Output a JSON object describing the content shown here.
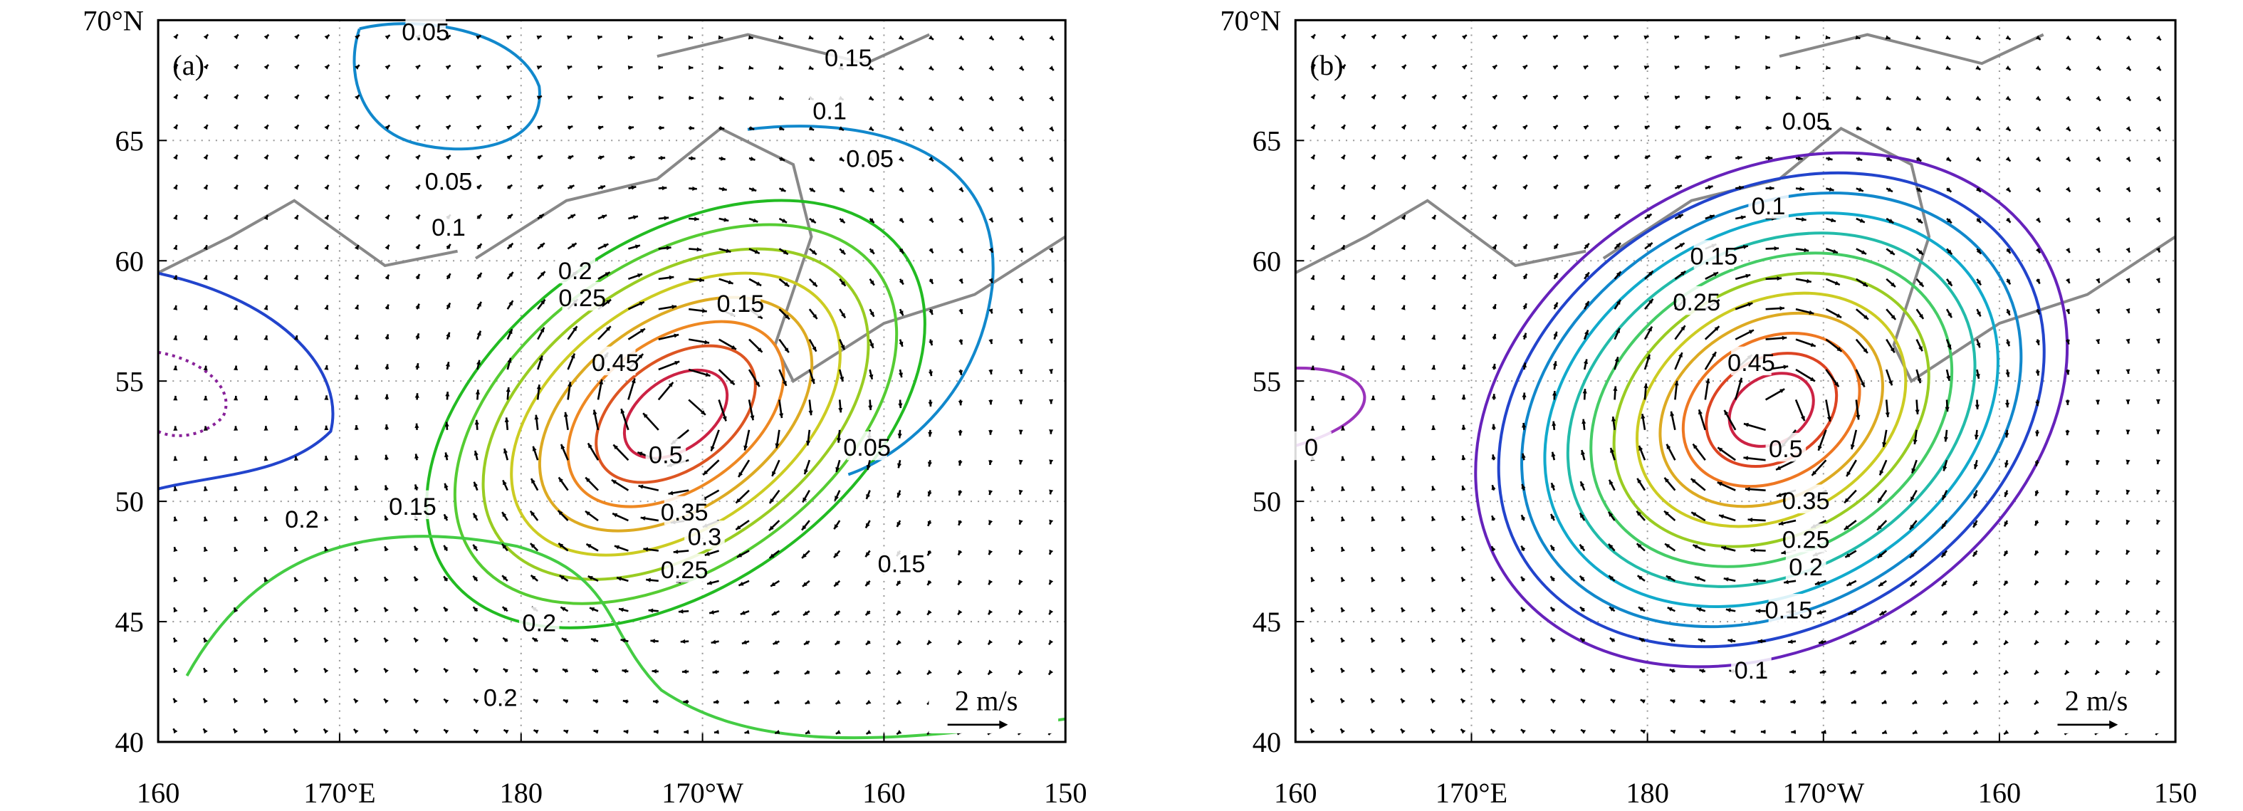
{
  "x_ticks": [
    "160",
    "170°E",
    "180",
    "170°W",
    "160",
    "150"
  ],
  "y_ticks": [
    "40",
    "45",
    "50",
    "55",
    "60",
    "65",
    "70°N"
  ],
  "panels": [
    {
      "label": "(a)",
      "scale_label": "2 m/s",
      "contour_labels": [
        0.05,
        0.15,
        0.1,
        0.05,
        0.05,
        0.1,
        0.2,
        0.25,
        0.45,
        0.15,
        0.5,
        0.05,
        0.2,
        0.15,
        0.35,
        0.3,
        0.25,
        0.15,
        0.2,
        0.2
      ]
    },
    {
      "label": "(b)",
      "scale_label": "2 m/s",
      "contour_labels": [
        0.05,
        0.1,
        0.15,
        0.25,
        0.45,
        0,
        0.5,
        0.35,
        0.25,
        0.2,
        0.15,
        0.1
      ]
    }
  ]
}
